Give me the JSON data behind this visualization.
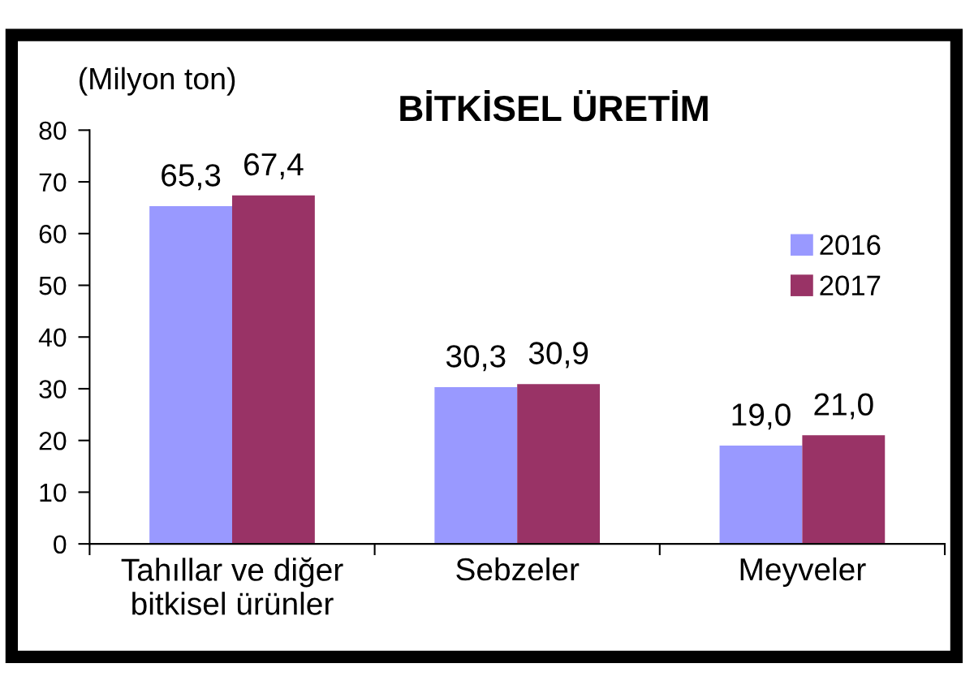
{
  "chart_data": {
    "type": "bar",
    "title": "BİTKİSEL ÜRETİM",
    "ylabel": "(Milyon ton)",
    "categories": [
      "Tahıllar ve diğer\nbitkisel ürünler",
      "Sebzeler",
      "Meyveler"
    ],
    "series": [
      {
        "name": "2016",
        "color": "#9999ff",
        "values": [
          65.3,
          30.3,
          19.0
        ],
        "value_labels": [
          "65,3",
          "30,3",
          "19,0"
        ]
      },
      {
        "name": "2017",
        "color": "#993366",
        "values": [
          67.4,
          30.9,
          21.0
        ],
        "value_labels": [
          "67,4",
          "30,9",
          "21,0"
        ]
      }
    ],
    "ylim": [
      0,
      80
    ],
    "yticks": [
      0,
      10,
      20,
      30,
      40,
      50,
      60,
      70,
      80
    ],
    "grid": false,
    "legend": "right"
  }
}
